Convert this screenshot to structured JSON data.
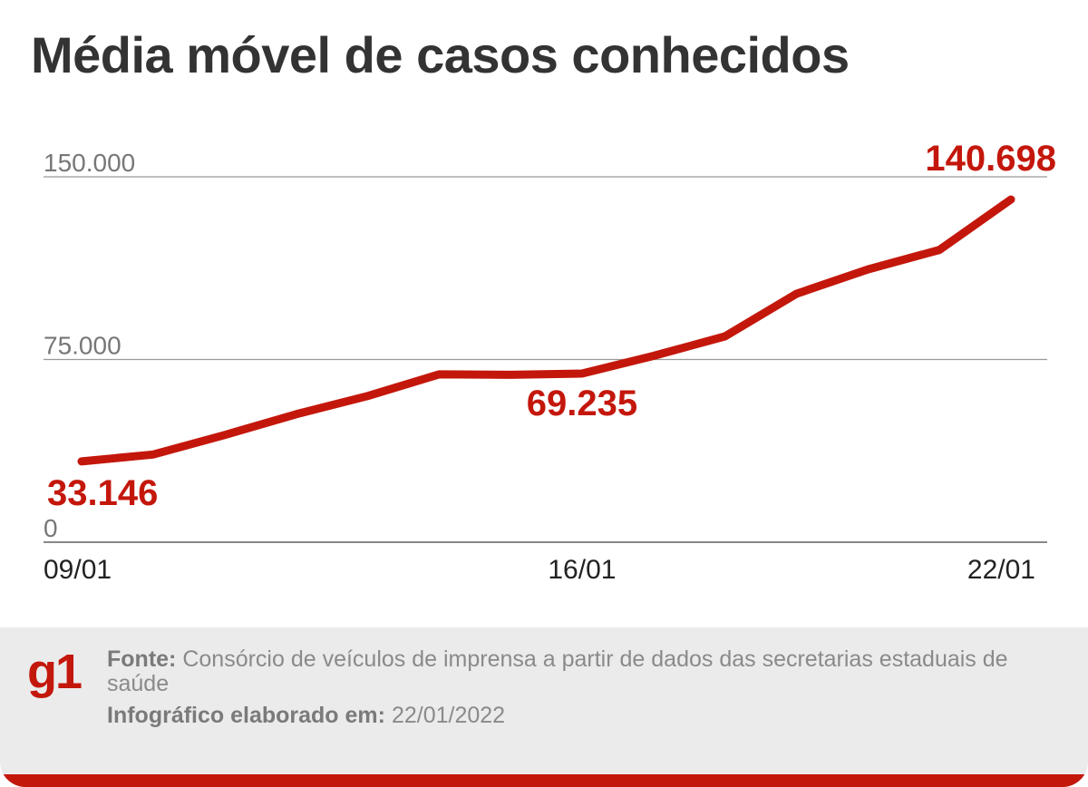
{
  "title": "Média móvel de casos conhecidos",
  "chart_data": {
    "type": "line",
    "title": "Média móvel de casos conhecidos",
    "x": [
      "09/01",
      "10/01",
      "11/01",
      "12/01",
      "13/01",
      "14/01",
      "15/01",
      "16/01",
      "17/01",
      "18/01",
      "19/01",
      "20/01",
      "21/01",
      "22/01"
    ],
    "values": [
      33146,
      36000,
      44000,
      52500,
      60000,
      68900,
      68700,
      69235,
      76500,
      84500,
      102000,
      112000,
      120000,
      140698
    ],
    "ylim": [
      0,
      150000
    ],
    "yticks": [
      0,
      75000,
      150000
    ],
    "ytick_labels": [
      "0",
      "75.000",
      "150.000"
    ],
    "xtick_labels": [
      "09/01",
      "16/01",
      "22/01"
    ],
    "annotations": [
      {
        "index": 0,
        "label": "33.146"
      },
      {
        "index": 7,
        "label": "69.235"
      },
      {
        "index": 13,
        "label": "140.698"
      }
    ],
    "line_color": "#c4170c",
    "grid": true,
    "xlabel": "",
    "ylabel": ""
  },
  "footer": {
    "logo": "g1",
    "source_label": "Fonte:",
    "source_text": "Consórcio de veículos de imprensa a partir de dados das secretarias estaduais de saúde",
    "credit_label": "Infográfico elaborado em:",
    "credit_text": "22/01/2022"
  }
}
